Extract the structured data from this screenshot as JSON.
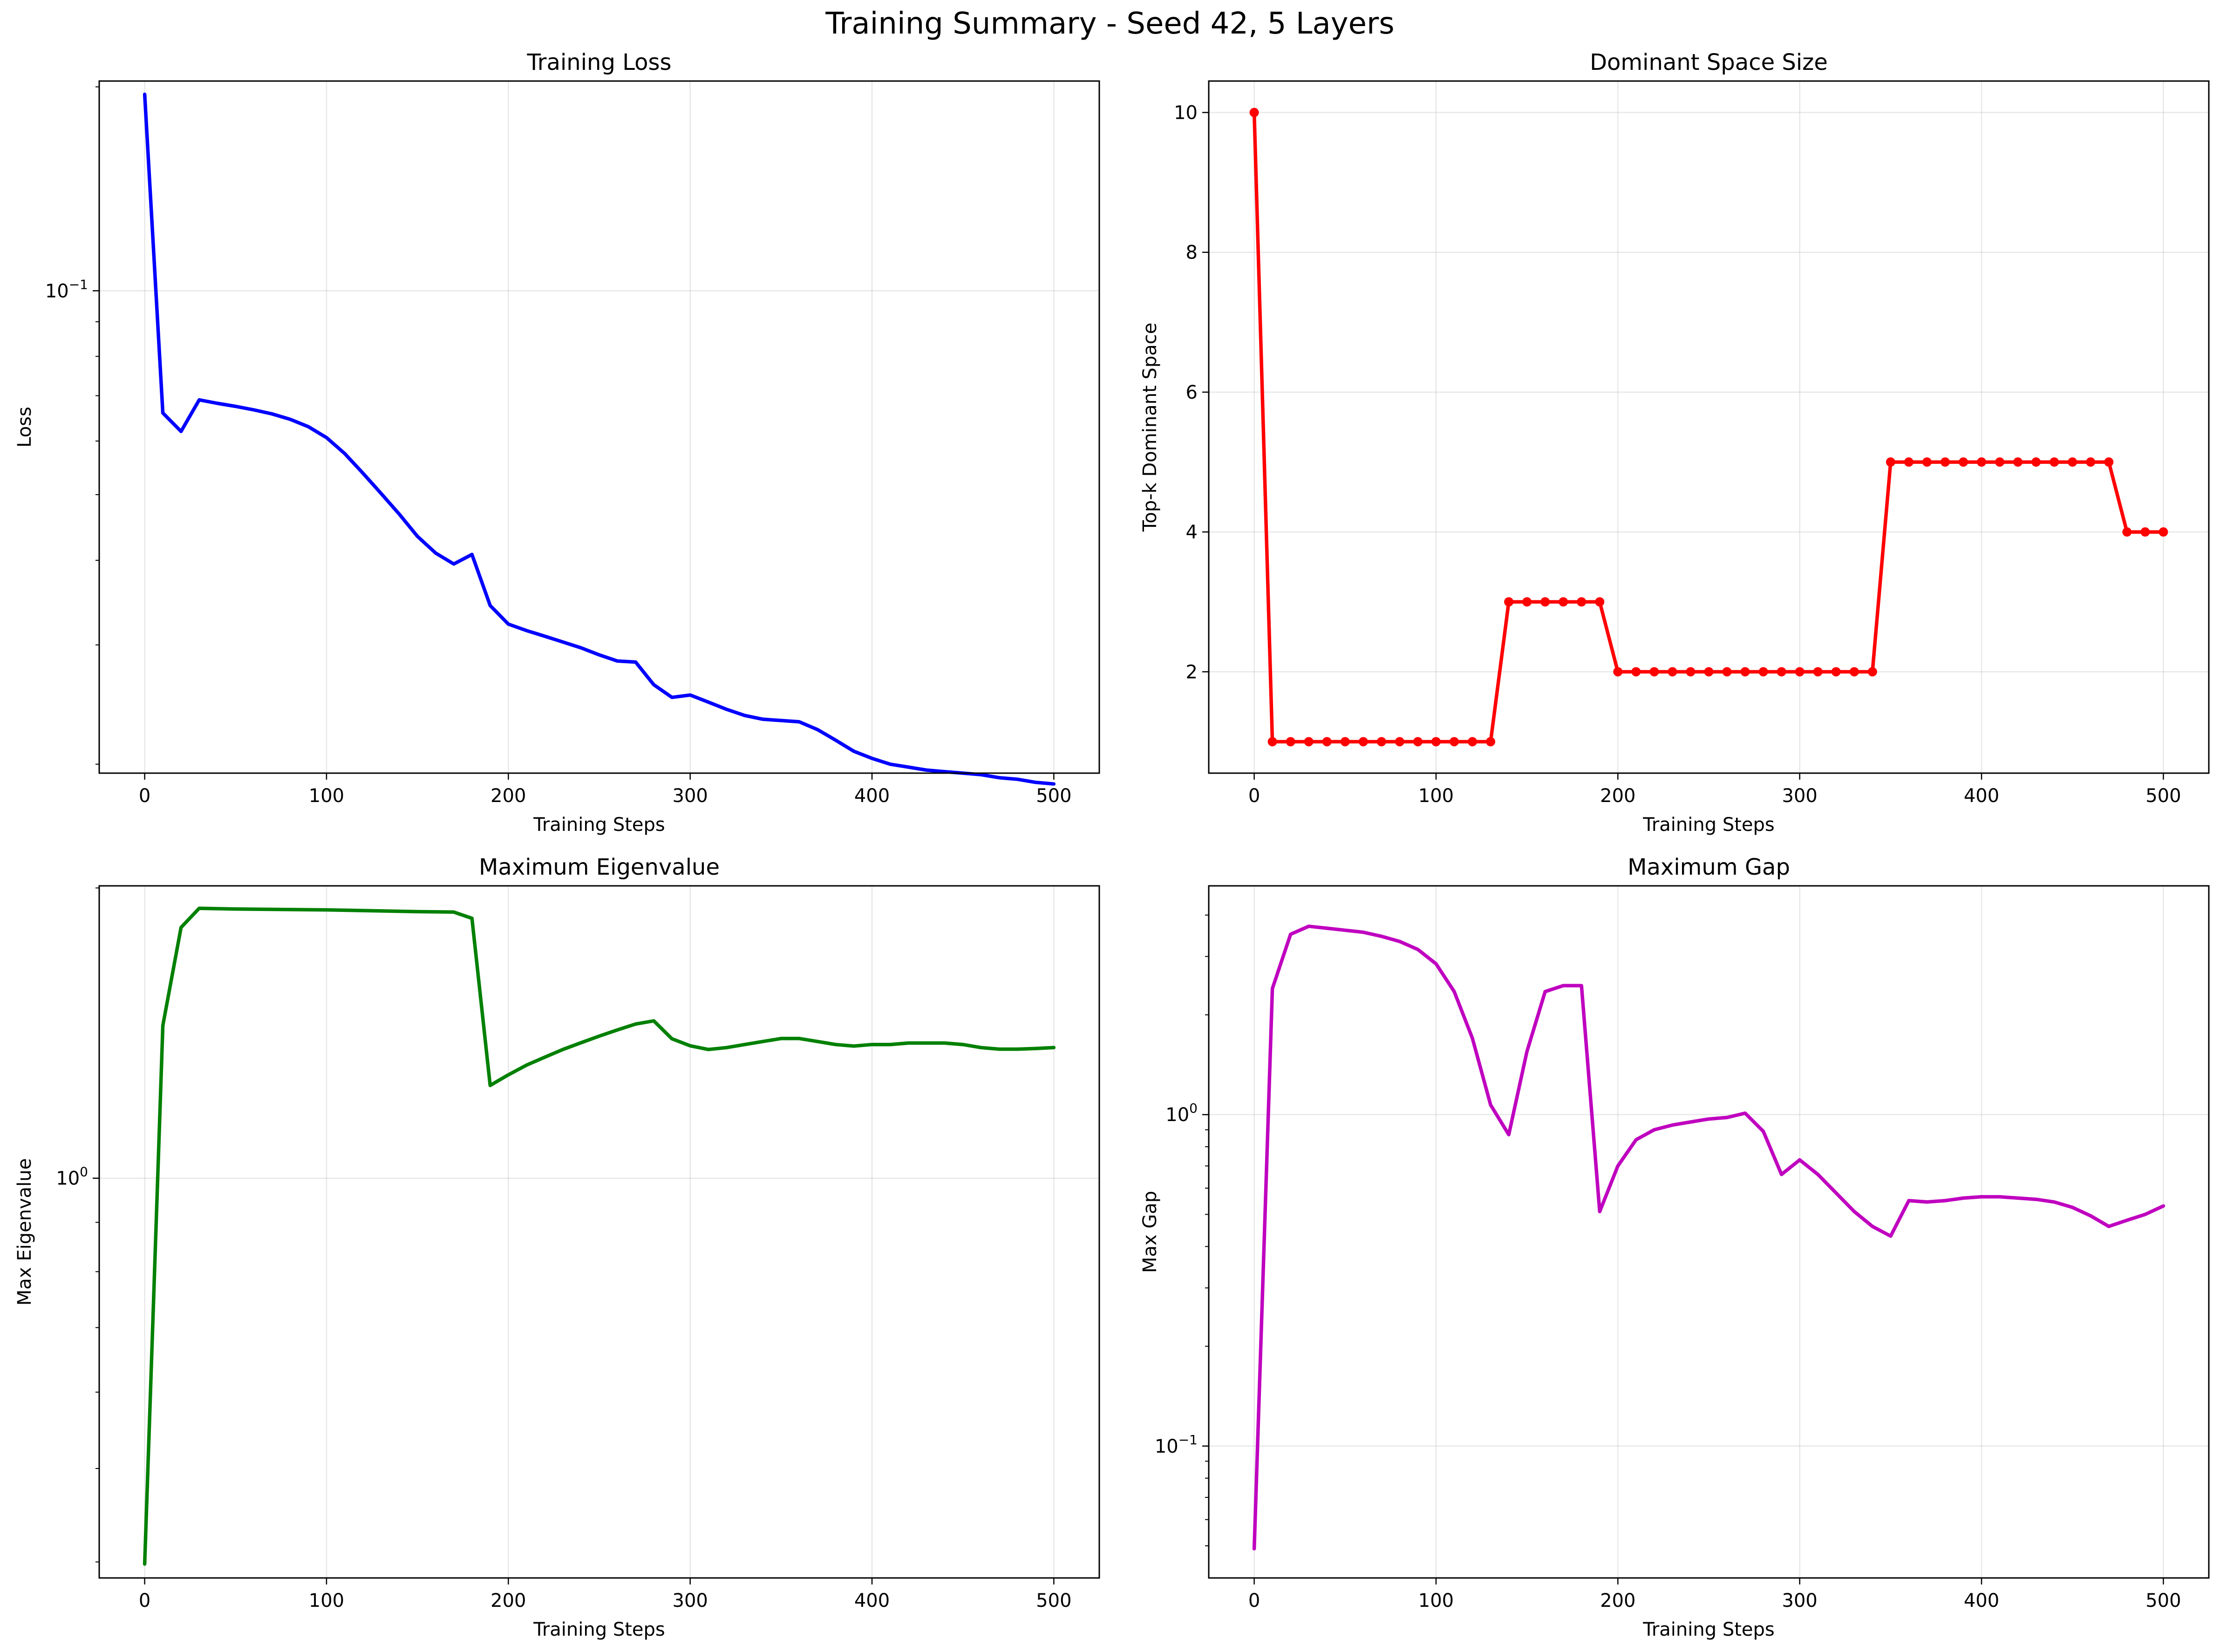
{
  "suptitle": "Training Summary - Seed 42, 5 Layers",
  "chart_data": [
    {
      "type": "line",
      "title": "Training Loss",
      "xlabel": "Training Steps",
      "ylabel": "Loss",
      "yscale": "log",
      "grid": true,
      "color": "#0000ff",
      "markers": false,
      "xlim": [
        -25,
        525
      ],
      "ylim": [
        0.0194,
        0.204
      ],
      "xticks": [
        0,
        100,
        200,
        300,
        400,
        500
      ],
      "yticks": [
        {
          "value": 0.1,
          "base": "10",
          "exp": "−1"
        }
      ],
      "yminor": [
        0.02,
        0.03,
        0.04,
        0.05,
        0.06,
        0.07,
        0.08,
        0.09,
        0.2
      ],
      "x": [
        0,
        10,
        20,
        30,
        40,
        50,
        60,
        70,
        80,
        90,
        100,
        110,
        120,
        130,
        140,
        150,
        160,
        170,
        180,
        190,
        200,
        210,
        220,
        230,
        240,
        250,
        260,
        270,
        280,
        290,
        300,
        310,
        320,
        330,
        340,
        350,
        360,
        370,
        380,
        390,
        400,
        410,
        420,
        430,
        440,
        450,
        460,
        470,
        480,
        490,
        500
      ],
      "y": [
        0.195,
        0.066,
        0.062,
        0.069,
        0.0682,
        0.0675,
        0.0667,
        0.0658,
        0.0646,
        0.063,
        0.0607,
        0.0575,
        0.0538,
        0.0502,
        0.0468,
        0.0434,
        0.041,
        0.0395,
        0.0408,
        0.0343,
        0.0322,
        0.0315,
        0.0309,
        0.0303,
        0.0297,
        0.029,
        0.0284,
        0.0283,
        0.0262,
        0.0251,
        0.0253,
        0.0247,
        0.0241,
        0.0236,
        0.0233,
        0.0232,
        0.0231,
        0.0225,
        0.0217,
        0.0209,
        0.0204,
        0.02,
        0.0198,
        0.0196,
        0.0195,
        0.0194,
        0.0193,
        0.0191,
        0.019,
        0.0188,
        0.0187
      ]
    },
    {
      "type": "line",
      "title": "Dominant Space Size",
      "xlabel": "Training Steps",
      "ylabel": "Top-k Dominant Space",
      "yscale": "linear",
      "grid": true,
      "color": "#ff0000",
      "markers": true,
      "xlim": [
        -25,
        525
      ],
      "ylim": [
        0.55,
        10.45
      ],
      "xticks": [
        0,
        100,
        200,
        300,
        400,
        500
      ],
      "yticks": [
        {
          "value": 2,
          "label": "2"
        },
        {
          "value": 4,
          "label": "4"
        },
        {
          "value": 6,
          "label": "6"
        },
        {
          "value": 8,
          "label": "8"
        },
        {
          "value": 10,
          "label": "10"
        }
      ],
      "x": [
        0,
        10,
        20,
        30,
        40,
        50,
        60,
        70,
        80,
        90,
        100,
        110,
        120,
        130,
        140,
        150,
        160,
        170,
        180,
        190,
        200,
        210,
        220,
        230,
        240,
        250,
        260,
        270,
        280,
        290,
        300,
        310,
        320,
        330,
        340,
        350,
        360,
        370,
        380,
        390,
        400,
        410,
        420,
        430,
        440,
        450,
        460,
        470,
        480,
        490,
        500
      ],
      "y": [
        10,
        1,
        1,
        1,
        1,
        1,
        1,
        1,
        1,
        1,
        1,
        1,
        1,
        1,
        3,
        3,
        3,
        3,
        3,
        3,
        2,
        2,
        2,
        2,
        2,
        2,
        2,
        2,
        2,
        2,
        2,
        2,
        2,
        2,
        2,
        5,
        5,
        5,
        5,
        5,
        5,
        5,
        5,
        5,
        5,
        5,
        5,
        5,
        4,
        4,
        4
      ]
    },
    {
      "type": "line",
      "title": "Maximum Eigenvalue",
      "xlabel": "Training Steps",
      "ylabel": "Max Eigenvalue",
      "yscale": "log",
      "grid": true,
      "color": "#008000",
      "markers": false,
      "xlim": [
        -25,
        525
      ],
      "ylim": [
        0.385,
        2.01
      ],
      "xticks": [
        0,
        100,
        200,
        300,
        400,
        500
      ],
      "yticks": [
        {
          "value": 1,
          "base": "10",
          "exp": "0"
        }
      ],
      "yminor": [
        0.4,
        0.5,
        0.6,
        0.7,
        0.8,
        0.9,
        2
      ],
      "x": [
        0,
        10,
        20,
        30,
        50,
        100,
        150,
        170,
        180,
        190,
        200,
        210,
        220,
        230,
        240,
        250,
        260,
        270,
        280,
        290,
        300,
        310,
        320,
        330,
        340,
        350,
        360,
        370,
        380,
        390,
        400,
        410,
        420,
        430,
        440,
        450,
        460,
        470,
        480,
        490,
        500
      ],
      "y": [
        0.398,
        1.44,
        1.82,
        1.905,
        1.902,
        1.898,
        1.89,
        1.888,
        1.86,
        1.248,
        1.28,
        1.31,
        1.335,
        1.36,
        1.382,
        1.404,
        1.425,
        1.445,
        1.456,
        1.395,
        1.372,
        1.36,
        1.366,
        1.376,
        1.386,
        1.396,
        1.396,
        1.386,
        1.376,
        1.371,
        1.376,
        1.376,
        1.381,
        1.381,
        1.381,
        1.376,
        1.366,
        1.361,
        1.361,
        1.363,
        1.366
      ]
    },
    {
      "type": "line",
      "title": "Maximum Gap",
      "xlabel": "Training Steps",
      "ylabel": "Max Gap",
      "yscale": "log",
      "grid": true,
      "color": "#bf00bf",
      "markers": false,
      "xlim": [
        -25,
        525
      ],
      "ylim": [
        0.04,
        4.9
      ],
      "xticks": [
        0,
        100,
        200,
        300,
        400,
        500
      ],
      "yticks": [
        {
          "value": 0.1,
          "base": "10",
          "exp": "−1"
        },
        {
          "value": 1,
          "base": "10",
          "exp": "0"
        }
      ],
      "yminor": [
        0.05,
        0.06,
        0.07,
        0.08,
        0.09,
        0.2,
        0.3,
        0.4,
        0.5,
        0.6,
        0.7,
        0.8,
        0.9,
        2,
        3,
        4
      ],
      "x": [
        0,
        10,
        20,
        30,
        40,
        50,
        60,
        70,
        80,
        90,
        100,
        110,
        120,
        130,
        140,
        150,
        160,
        170,
        180,
        190,
        200,
        210,
        220,
        230,
        240,
        250,
        260,
        270,
        280,
        290,
        300,
        310,
        320,
        330,
        340,
        350,
        360,
        370,
        380,
        390,
        400,
        410,
        420,
        430,
        440,
        450,
        460,
        470,
        480,
        490,
        500
      ],
      "y": [
        0.049,
        2.4,
        3.5,
        3.7,
        3.65,
        3.6,
        3.55,
        3.45,
        3.33,
        3.15,
        2.85,
        2.35,
        1.7,
        1.07,
        0.87,
        1.55,
        2.35,
        2.45,
        2.45,
        0.51,
        0.7,
        0.84,
        0.9,
        0.93,
        0.95,
        0.97,
        0.98,
        1.01,
        0.89,
        0.66,
        0.73,
        0.66,
        0.58,
        0.51,
        0.46,
        0.43,
        0.55,
        0.545,
        0.55,
        0.56,
        0.565,
        0.565,
        0.56,
        0.555,
        0.545,
        0.525,
        0.495,
        0.46,
        0.48,
        0.5,
        0.53
      ]
    }
  ]
}
